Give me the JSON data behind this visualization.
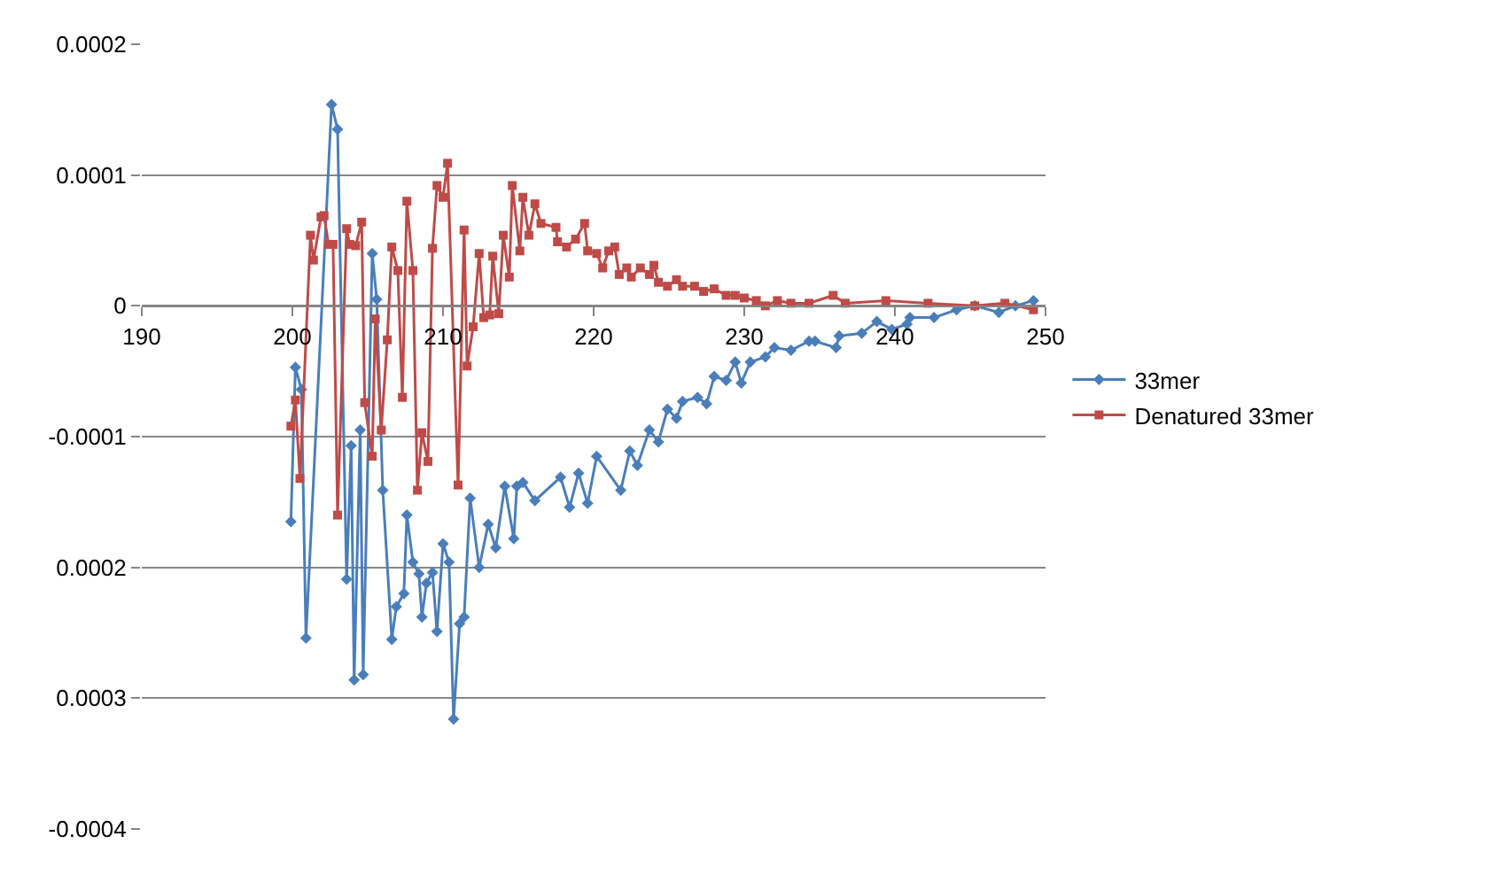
{
  "chart_data": {
    "type": "line",
    "xlim": [
      190,
      250
    ],
    "xticks": [
      190,
      200,
      210,
      220,
      230,
      240,
      250
    ],
    "ylim": [
      -0.0004,
      0.0002
    ],
    "yticks": [
      {
        "value": 0.0002,
        "label": "0.0002"
      },
      {
        "value": 0.0001,
        "label": "0.0001"
      },
      {
        "value": 0,
        "label": "0"
      },
      {
        "value": -0.0001,
        "label": "-0.0001"
      },
      {
        "value": -0.0002,
        "label": "0.0002"
      },
      {
        "value": -0.0003,
        "label": "0.0003"
      },
      {
        "value": -0.0004,
        "label": "-0.0004"
      }
    ],
    "grid": "y",
    "legend": "right",
    "line_style": "solid",
    "series": [
      {
        "name": "33mer",
        "color": "#4a7ebb",
        "marker": "diamond",
        "x": [
          199.9,
          200.2,
          200.6,
          200.9,
          202.6,
          203.0,
          203.6,
          203.9,
          204.1,
          204.5,
          204.7,
          205.3,
          205.6,
          206.0,
          206.6,
          206.9,
          207.4,
          207.6,
          208.0,
          208.4,
          208.6,
          208.9,
          209.3,
          209.6,
          210.0,
          210.4,
          210.7,
          211.1,
          211.4,
          211.8,
          212.4,
          213.0,
          213.5,
          214.1,
          214.7,
          214.9,
          215.3,
          216.1,
          217.8,
          218.4,
          219.0,
          219.6,
          220.2,
          221.8,
          222.4,
          222.9,
          223.7,
          224.3,
          224.9,
          225.5,
          225.9,
          226.9,
          227.5,
          228.0,
          228.8,
          229.4,
          229.8,
          230.4,
          231.4,
          232.0,
          233.1,
          234.3,
          234.7,
          236.1,
          236.3,
          237.8,
          238.8,
          239.8,
          240.8,
          241.0,
          242.6,
          244.1,
          245.3,
          246.9,
          248.0,
          249.2
        ],
        "values": [
          -0.000165,
          -4.7e-05,
          -6.4e-05,
          -0.000254,
          0.000154,
          0.000135,
          -0.000209,
          -0.000107,
          -0.000286,
          -9.5e-05,
          -0.000282,
          4e-05,
          5e-06,
          -0.000141,
          -0.000255,
          -0.00023,
          -0.00022,
          -0.00016,
          -0.000196,
          -0.000205,
          -0.000238,
          -0.000212,
          -0.000204,
          -0.000249,
          -0.000182,
          -0.000196,
          -0.000316,
          -0.000243,
          -0.000238,
          -0.000147,
          -0.0002,
          -0.000167,
          -0.000185,
          -0.000138,
          -0.000178,
          -0.000138,
          -0.000135,
          -0.000149,
          -0.000131,
          -0.000154,
          -0.000128,
          -0.000151,
          -0.000115,
          -0.000141,
          -0.000111,
          -0.000122,
          -9.5e-05,
          -0.000104,
          -7.9e-05,
          -8.6e-05,
          -7.3e-05,
          -7e-05,
          -7.5e-05,
          -5.4e-05,
          -5.7e-05,
          -4.3e-05,
          -5.9e-05,
          -4.3e-05,
          -3.9e-05,
          -3.2e-05,
          -3.4e-05,
          -2.7e-05,
          -2.7e-05,
          -3.2e-05,
          -2.3e-05,
          -2.1e-05,
          -1.2e-05,
          -1.8e-05,
          -1.4e-05,
          -9e-06,
          -9e-06,
          -3e-06,
          0,
          -5e-06,
          0,
          4e-06
        ]
      },
      {
        "name": "Denatured 33mer",
        "color": "#be4b48",
        "marker": "square",
        "x": [
          199.9,
          200.2,
          200.5,
          201.2,
          201.4,
          201.9,
          202.1,
          202.4,
          202.7,
          203.0,
          203.6,
          203.8,
          204.2,
          204.6,
          204.8,
          205.3,
          205.5,
          205.9,
          206.3,
          206.6,
          207.0,
          207.3,
          207.6,
          208.0,
          208.3,
          208.6,
          209.0,
          209.3,
          209.6,
          210.0,
          210.3,
          211.0,
          211.4,
          211.6,
          212.0,
          212.4,
          212.7,
          213.1,
          213.3,
          213.7,
          214.0,
          214.4,
          214.6,
          215.1,
          215.3,
          215.7,
          216.1,
          216.5,
          217.5,
          217.6,
          218.2,
          218.8,
          219.4,
          219.6,
          220.2,
          220.6,
          221.0,
          221.4,
          221.7,
          222.2,
          222.5,
          223.1,
          223.7,
          224.0,
          224.3,
          224.9,
          225.5,
          225.9,
          226.7,
          227.3,
          228.0,
          228.8,
          229.4,
          230.0,
          230.8,
          231.4,
          232.2,
          233.1,
          234.3,
          235.9,
          236.7,
          239.4,
          242.2,
          245.3,
          247.3,
          249.2
        ],
        "values": [
          -9.2e-05,
          -7.2e-05,
          -0.000132,
          5.4e-05,
          3.5e-05,
          6.8e-05,
          6.9e-05,
          4.7e-05,
          4.7e-05,
          -0.00016,
          5.9e-05,
          4.7e-05,
          4.6e-05,
          6.4e-05,
          -7.4e-05,
          -0.000115,
          -1e-05,
          -9.5e-05,
          -2.6e-05,
          4.5e-05,
          2.7e-05,
          -7e-05,
          8e-05,
          2.7e-05,
          -0.000141,
          -9.7e-05,
          -0.000119,
          4.4e-05,
          9.2e-05,
          8.3e-05,
          0.000109,
          -0.000137,
          5.8e-05,
          -4.6e-05,
          -1.6e-05,
          4e-05,
          -9e-06,
          -7e-06,
          3.8e-05,
          -6e-06,
          5.4e-05,
          2.2e-05,
          9.2e-05,
          4.2e-05,
          8.3e-05,
          5.4e-05,
          7.8e-05,
          6.3e-05,
          6e-05,
          4.9e-05,
          4.5e-05,
          5.1e-05,
          6.3e-05,
          4.2e-05,
          4e-05,
          2.9e-05,
          4.2e-05,
          4.5e-05,
          2.4e-05,
          2.9e-05,
          2.2e-05,
          2.9e-05,
          2.4e-05,
          3.1e-05,
          1.8e-05,
          1.5e-05,
          2e-05,
          1.5e-05,
          1.5e-05,
          1.1e-05,
          1.3e-05,
          8e-06,
          8e-06,
          6e-06,
          4e-06,
          0,
          4e-06,
          2e-06,
          2e-06,
          8e-06,
          2e-06,
          4e-06,
          2e-06,
          0,
          2e-06,
          -3e-06
        ]
      }
    ]
  }
}
